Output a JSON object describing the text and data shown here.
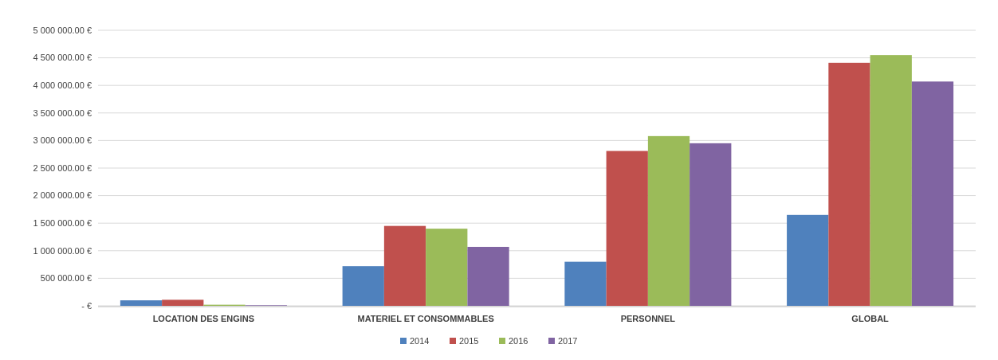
{
  "chart_data": {
    "type": "bar",
    "categories": [
      "LOCATION DES ENGINS",
      "MATERIEL ET CONSOMMABLES",
      "PERSONNEL",
      "GLOBAL"
    ],
    "series": [
      {
        "name": "2014",
        "color": "#4f81bd",
        "values": [
          100000,
          720000,
          800000,
          1650000
        ]
      },
      {
        "name": "2015",
        "color": "#c0504d",
        "values": [
          110000,
          1450000,
          2810000,
          4410000
        ]
      },
      {
        "name": "2016",
        "color": "#9bbb59",
        "values": [
          20000,
          1400000,
          3080000,
          4550000
        ]
      },
      {
        "name": "2017",
        "color": "#8064a2",
        "values": [
          10000,
          1070000,
          2950000,
          4070000
        ]
      }
    ],
    "ylim": [
      0,
      5000000
    ],
    "yticks": [
      {
        "value": 0,
        "label": "-   €"
      },
      {
        "value": 500000,
        "label": "500 000.00 €"
      },
      {
        "value": 1000000,
        "label": "1 000 000.00 €"
      },
      {
        "value": 1500000,
        "label": "1 500 000.00 €"
      },
      {
        "value": 2000000,
        "label": "2 000 000.00 €"
      },
      {
        "value": 2500000,
        "label": "2 500 000.00 €"
      },
      {
        "value": 3000000,
        "label": "3 000 000.00 €"
      },
      {
        "value": 3500000,
        "label": "3 500 000.00 €"
      },
      {
        "value": 4000000,
        "label": "4 000 000.00 €"
      },
      {
        "value": 4500000,
        "label": "4 500 000.00 €"
      },
      {
        "value": 5000000,
        "label": "5 000 000.00 €"
      }
    ],
    "grid": "y",
    "legend": "bottom"
  }
}
